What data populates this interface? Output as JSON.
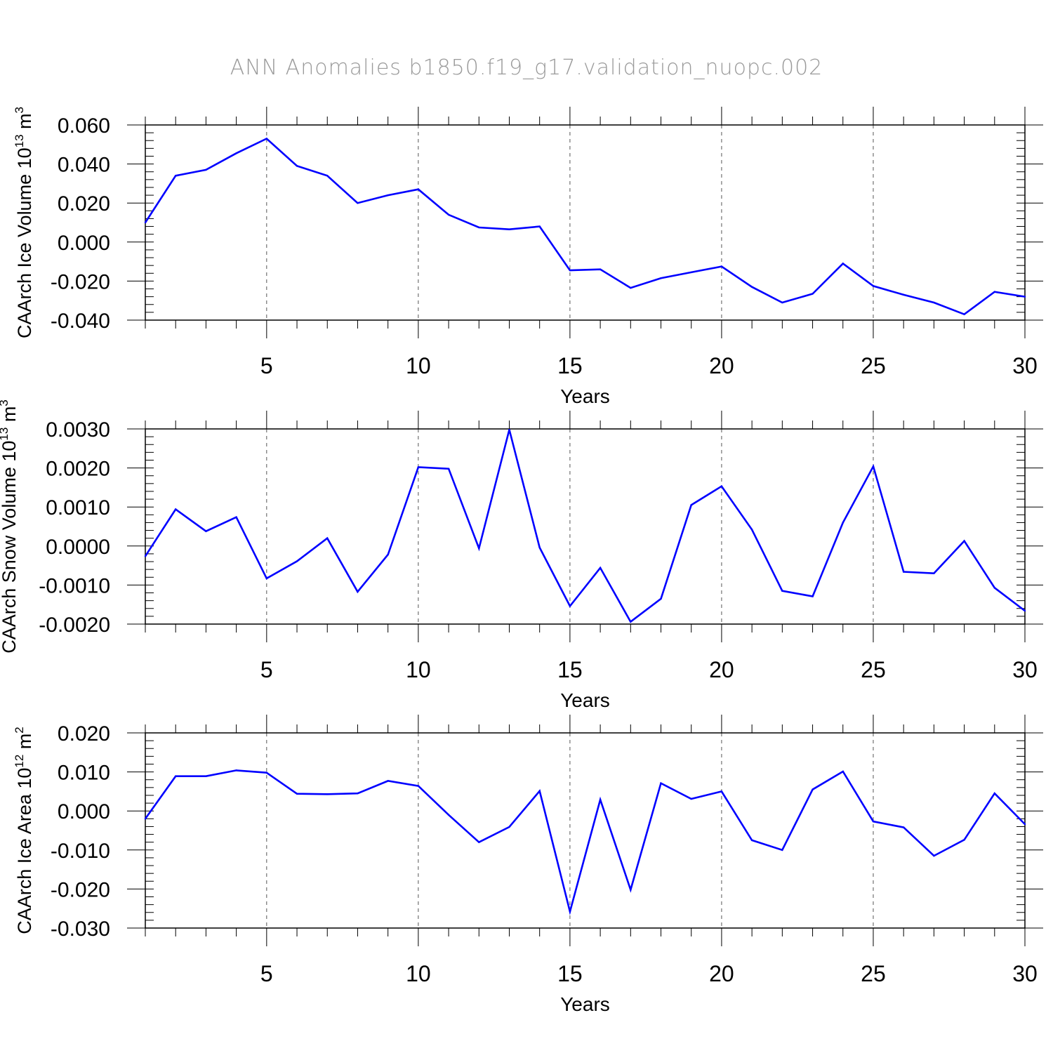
{
  "title": "ANN Anomalies b1850.f19_g17.validation_nuopc.002",
  "line_color": "#0000ff",
  "chart_data": [
    {
      "type": "line",
      "name": "ice-volume",
      "ylabel": {
        "text": "CAArch Ice Volume 10",
        "exp": "13",
        "unit": "m",
        "unit_exp": "3"
      },
      "xlabel": "Years",
      "xlim": [
        1,
        30
      ],
      "ylim": [
        -0.04,
        0.06
      ],
      "yticks": [
        -0.04,
        -0.02,
        0.0,
        0.02,
        0.04,
        0.06
      ],
      "ytick_labels": [
        "-0.040",
        "-0.020",
        "0.000",
        "0.020",
        "0.040",
        "0.060"
      ],
      "xticks": [
        5,
        10,
        15,
        20,
        25,
        30
      ],
      "xtick_labels": [
        "5",
        "10",
        "15",
        "20",
        "25",
        "30"
      ],
      "x": [
        1,
        2,
        3,
        4,
        5,
        6,
        7,
        8,
        9,
        10,
        11,
        12,
        13,
        14,
        15,
        16,
        17,
        18,
        19,
        20,
        21,
        22,
        23,
        24,
        25,
        26,
        27,
        28,
        29,
        30
      ],
      "values": [
        0.01,
        0.034,
        0.037,
        0.0455,
        0.053,
        0.039,
        0.034,
        0.02,
        0.024,
        0.027,
        0.014,
        0.0075,
        0.0065,
        0.008,
        -0.0145,
        -0.014,
        -0.0235,
        -0.0185,
        -0.0155,
        -0.0125,
        -0.023,
        -0.031,
        -0.0265,
        -0.011,
        -0.0225,
        -0.027,
        -0.031,
        -0.037,
        -0.0255,
        -0.028
      ]
    },
    {
      "type": "line",
      "name": "snow-volume",
      "ylabel": {
        "text": "CAArch Snow Volume 10",
        "exp": "13",
        "unit": "m",
        "unit_exp": "3"
      },
      "xlabel": "Years",
      "xlim": [
        1,
        30
      ],
      "ylim": [
        -0.002,
        0.003
      ],
      "yticks": [
        -0.002,
        -0.001,
        0.0,
        0.001,
        0.002,
        0.003
      ],
      "ytick_labels": [
        "-0.0020",
        "-0.0010",
        "0.0000",
        "0.0010",
        "0.0020",
        "0.0030"
      ],
      "xticks": [
        5,
        10,
        15,
        20,
        25,
        30
      ],
      "xtick_labels": [
        "5",
        "10",
        "15",
        "20",
        "25",
        "30"
      ],
      "x": [
        1,
        2,
        3,
        4,
        5,
        6,
        7,
        8,
        9,
        10,
        11,
        12,
        13,
        14,
        15,
        16,
        17,
        18,
        19,
        20,
        21,
        22,
        23,
        24,
        25,
        26,
        27,
        28,
        29,
        30
      ],
      "values": [
        -0.00026,
        0.00094,
        0.00038,
        0.00074,
        -0.00083,
        -0.00039,
        0.0002,
        -0.00117,
        -0.00022,
        0.00202,
        0.00198,
        -6e-05,
        0.00298,
        -4e-05,
        -0.00154,
        -0.00056,
        -0.00194,
        -0.00135,
        0.00105,
        0.00153,
        0.00042,
        -0.00115,
        -0.00129,
        0.0006,
        0.00204,
        -0.00066,
        -0.0007,
        0.00013,
        -0.00107,
        -0.00166
      ]
    },
    {
      "type": "line",
      "name": "ice-area",
      "ylabel": {
        "text": "CAArch Ice Area 10",
        "exp": "12",
        "unit": "m",
        "unit_exp": "2"
      },
      "xlabel": "Years",
      "xlim": [
        1,
        30
      ],
      "ylim": [
        -0.03,
        0.02
      ],
      "yticks": [
        -0.03,
        -0.02,
        -0.01,
        0.0,
        0.01,
        0.02
      ],
      "ytick_labels": [
        "-0.030",
        "-0.020",
        "-0.010",
        "0.000",
        "0.010",
        "0.020"
      ],
      "xticks": [
        5,
        10,
        15,
        20,
        25,
        30
      ],
      "xtick_labels": [
        "5",
        "10",
        "15",
        "20",
        "25",
        "30"
      ],
      "x": [
        1,
        2,
        3,
        4,
        5,
        6,
        7,
        8,
        9,
        10,
        11,
        12,
        13,
        14,
        15,
        16,
        17,
        18,
        19,
        20,
        21,
        22,
        23,
        24,
        25,
        26,
        27,
        28,
        29,
        30
      ],
      "values": [
        -0.002,
        0.0089,
        0.0089,
        0.0104,
        0.0098,
        0.0044,
        0.0043,
        0.0045,
        0.0077,
        0.0064,
        -0.001,
        -0.008,
        -0.0041,
        0.0051,
        -0.0258,
        0.0029,
        -0.0202,
        0.0071,
        0.0031,
        0.005,
        -0.0075,
        -0.01,
        0.0055,
        0.0101,
        -0.0027,
        -0.0042,
        -0.0115,
        -0.0074,
        0.0045,
        -0.0034
      ]
    }
  ]
}
